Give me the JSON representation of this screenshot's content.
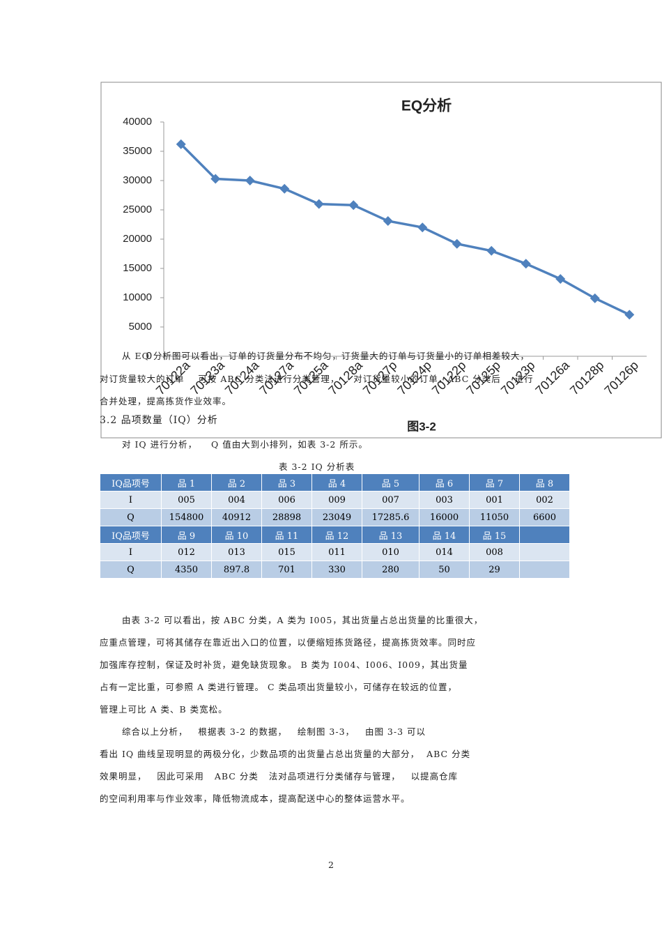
{
  "chart_data": {
    "type": "line",
    "title": "EQ分析",
    "label": "图3-2",
    "categories": [
      "70122a",
      "70123a",
      "70124a",
      "70127a",
      "70125a",
      "70128a",
      "70127p",
      "70124p",
      "70122p",
      "70125p",
      "70123p",
      "70126a",
      "70128p",
      "70126p"
    ],
    "series": [
      {
        "color": "#4f81bd",
        "values": [
          36200,
          30300,
          30000,
          28600,
          26000,
          25800,
          23100,
          22000,
          19200,
          18000,
          15800,
          13200,
          9900,
          7100
        ]
      }
    ],
    "ylim": [
      0,
      40000
    ],
    "yticks": [
      0,
      5000,
      10000,
      15000,
      20000,
      25000,
      30000,
      35000,
      40000
    ],
    "grid": false
  },
  "overlay_lines": [
    "从 EQ 分析图可以看出，订单的订货量分布不均匀，订货量大的订单与订货量小的订单相差较大，",
    "对订货量较大的订单    可按 ABC 分类法进行分类管理，    对订货量较小的订单，ABC 分类后    进行",
    "合并处理，提高拣货作业效率。"
  ],
  "section_heading": "3.2 品项数量（IQ）分析",
  "intro": "对 IQ 进行分析，    Q 值由大到小排列，如表 3-2 所示。",
  "table": {
    "caption": "表 3-2 IQ 分析表",
    "rows": [
      [
        "IQ品项号",
        "品 1",
        "品 2",
        "品 3",
        "品 4",
        "品 5",
        "品 6",
        "品 7",
        "品 8"
      ],
      [
        "I",
        "005",
        "004",
        "006",
        "009",
        "007",
        "003",
        "001",
        "002"
      ],
      [
        "Q",
        154800,
        40912,
        28898,
        23049,
        17285.6,
        16000,
        11050,
        6600
      ],
      [
        "IQ品项号",
        "品 9",
        "品 10",
        "品 11",
        "品 12",
        "品 13",
        "品 14",
        "品 15",
        null
      ],
      [
        "I",
        "012",
        "013",
        "015",
        "011",
        "010",
        "014",
        "008",
        null
      ],
      [
        "Q",
        4350,
        897.8,
        701,
        330,
        280,
        50,
        29,
        null
      ]
    ]
  },
  "paragraphs": [
    "由表 3-2 可以看出，按 ABC 分类，A 类为 I005，其出货量占总出货量的比重很大，",
    "应重点管理，可将其储存在靠近出入口的位置，以便缩短拣货路径，提高拣货效率。同时应",
    "加强库存控制，保证及时补货，避免缺货现象。 B 类为 I004、I006、I009，其出货量",
    "占有一定比重，可参照 A 类进行管理。 C 类品项出货量较小，可储存在较远的位置，",
    "管理上可比 A 类、B 类宽松。",
    "综合以上分析，   根据表 3-2 的数据，   绘制图 3-3，   由图 3-3 可以",
    "看出 IQ 曲线呈现明显的两极分化，少数品项的出货量占总出货量的大部分，  ABC 分类",
    "效果明显，   因此可采用   ABC 分类   法对品项进行分类储存与管理，   以提高仓库",
    "的空间利用率与作业效率，降低物流成本，提高配送中心的整体运营水平。"
  ],
  "page_number": "2"
}
